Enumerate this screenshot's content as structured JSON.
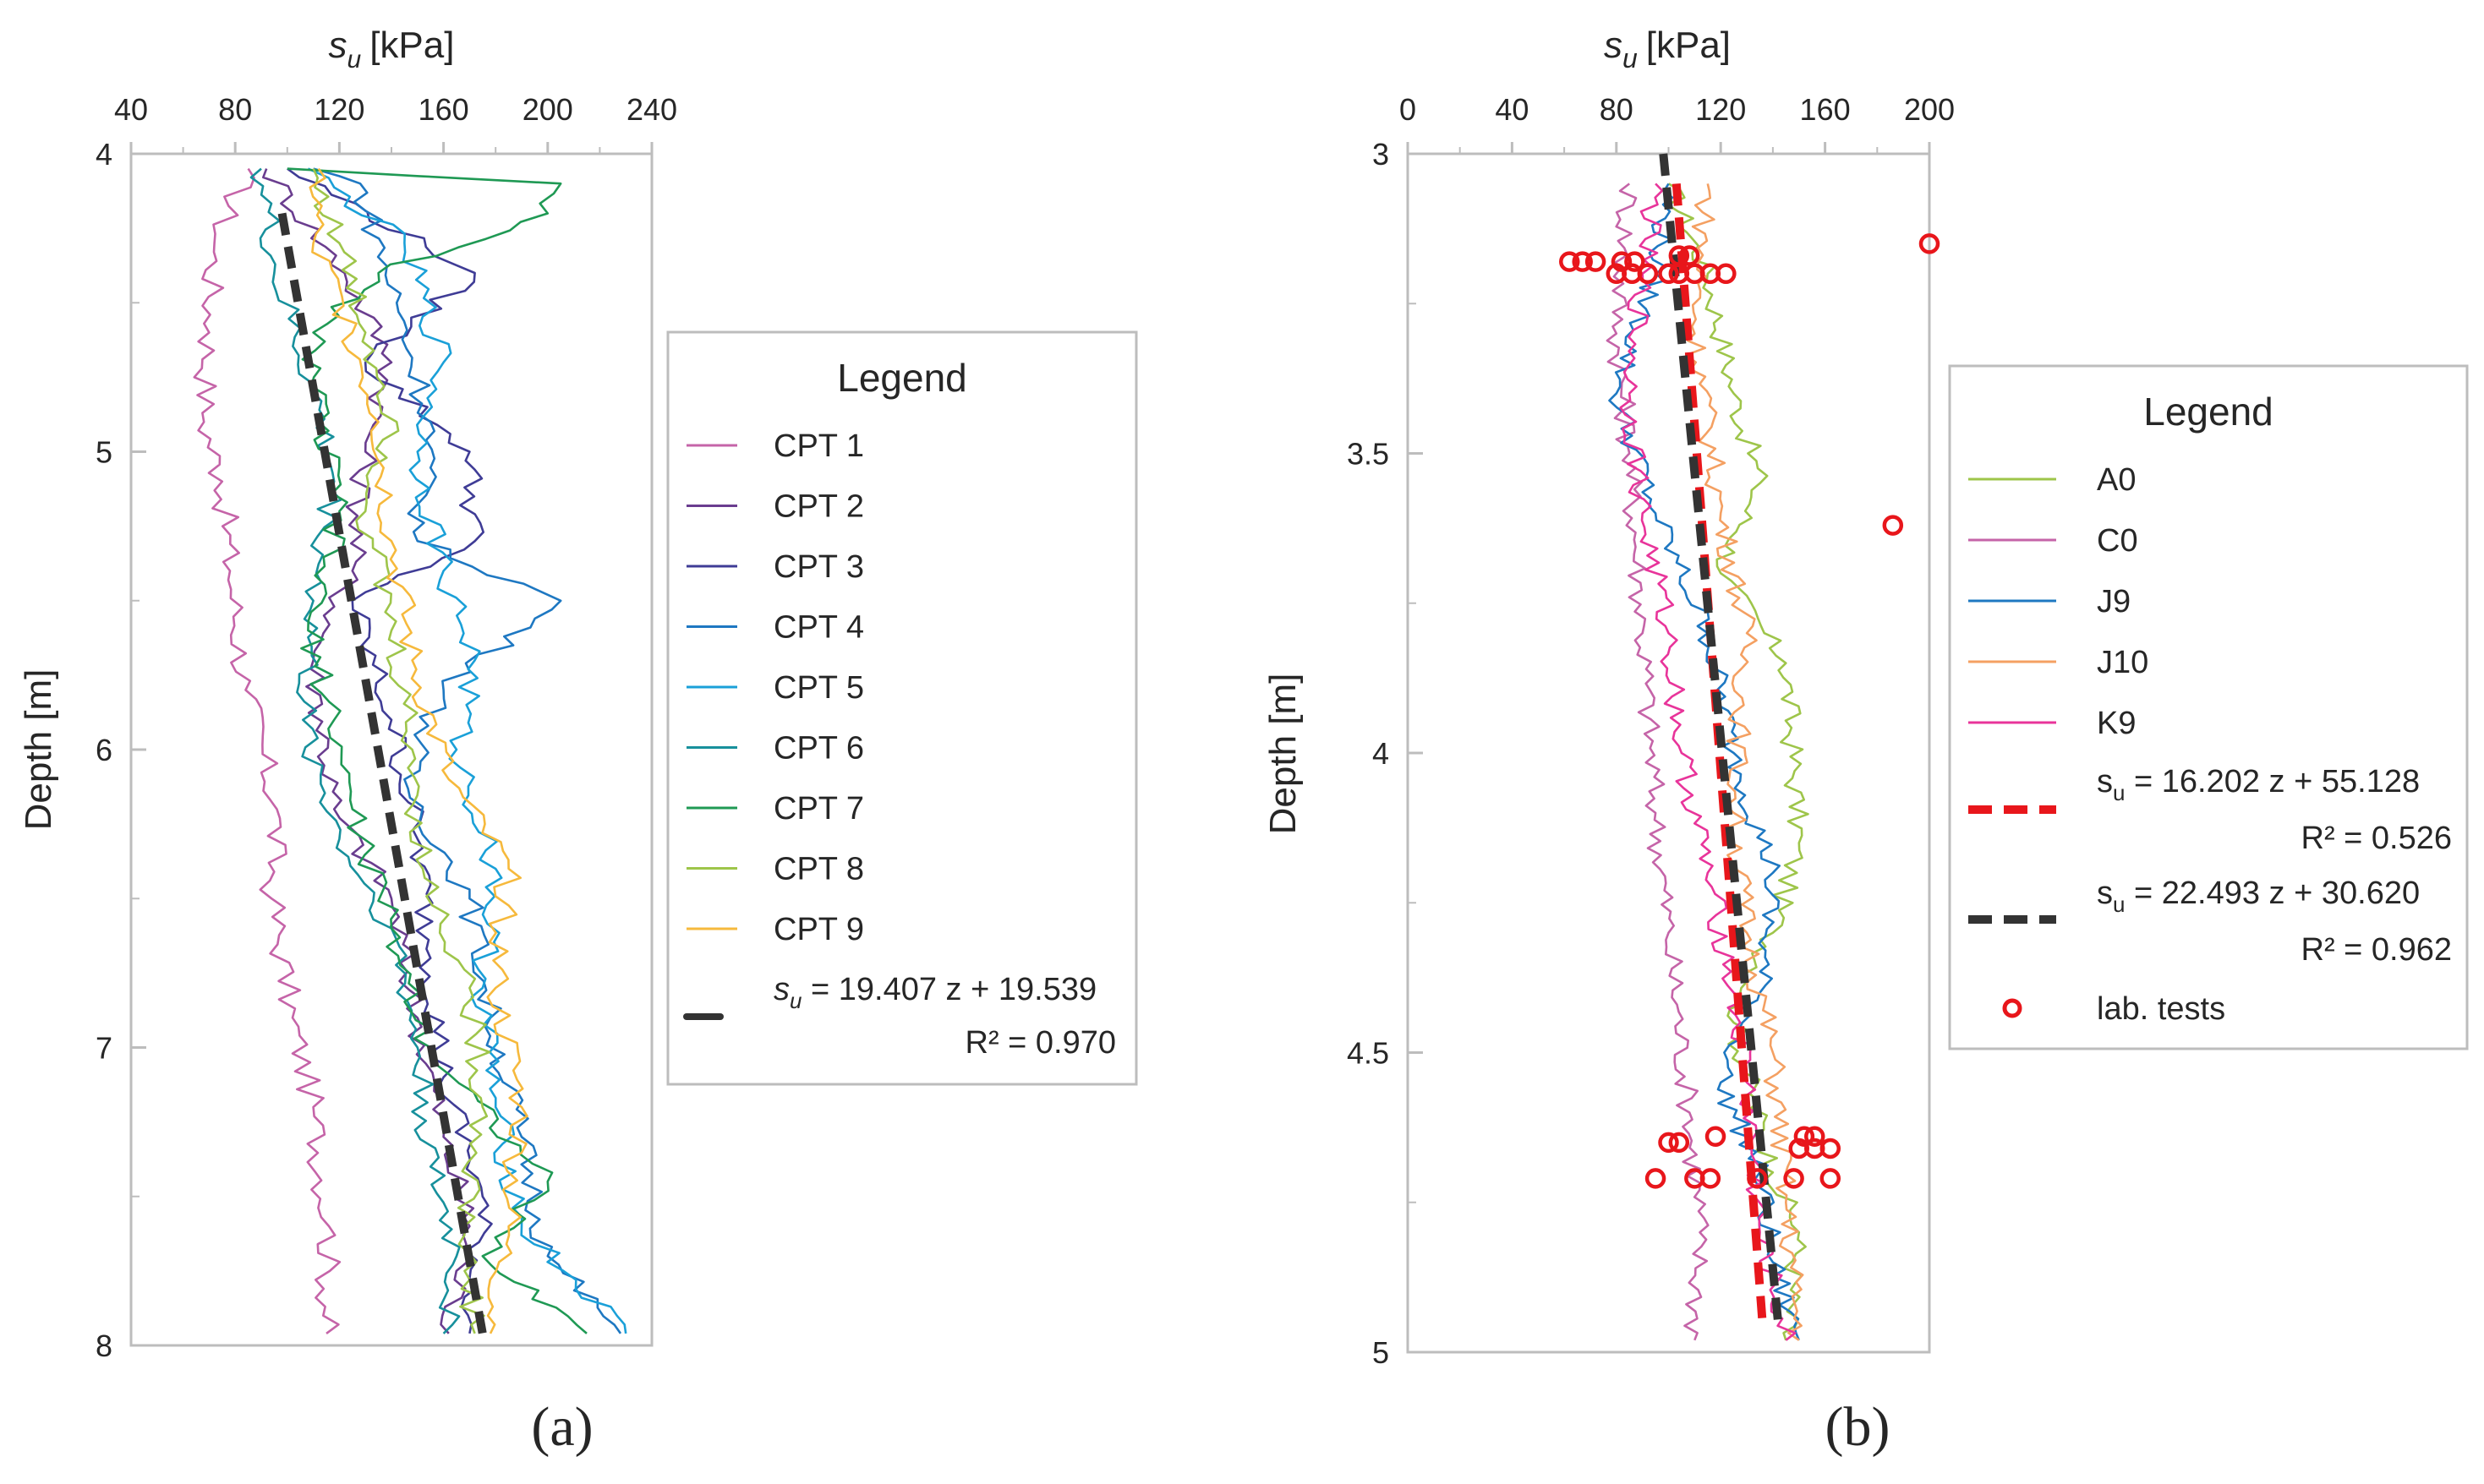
{
  "chart_data": [
    {
      "type": "line",
      "panel_label": "(a)",
      "xlabel": "s",
      "xlabel_sub": "u",
      "xlabel_unit": "[kPa]",
      "ylabel": "Depth [m]",
      "xlim": [
        40,
        240
      ],
      "ylim": [
        4,
        8
      ],
      "y_inverted": true,
      "x_axis_position": "top",
      "x_ticks": [
        "40",
        "80",
        "120",
        "160",
        "200",
        "240"
      ],
      "y_ticks": [
        "4",
        "5",
        "6",
        "7",
        "8"
      ],
      "grid": false,
      "legend": {
        "title": "Legend",
        "position": "right"
      },
      "series": [
        {
          "name": "CPT 1",
          "color": "#c564a8",
          "style": "solid",
          "points": [
            [
              85,
              4.05
            ],
            [
              72,
              4.3
            ],
            [
              70,
              4.6
            ],
            [
              68,
              4.9
            ],
            [
              75,
              5.1
            ],
            [
              78,
              5.4
            ],
            [
              84,
              5.8
            ],
            [
              96,
              6.2
            ],
            [
              94,
              6.5
            ],
            [
              102,
              6.9
            ],
            [
              110,
              7.2
            ],
            [
              116,
              7.6
            ],
            [
              115,
              7.96
            ]
          ]
        },
        {
          "name": "CPT 2",
          "color": "#6a3d8f",
          "style": "solid",
          "points": [
            [
              92,
              4.05
            ],
            [
              122,
              4.4
            ],
            [
              140,
              4.7
            ],
            [
              130,
              5.0
            ],
            [
              125,
              5.4
            ],
            [
              110,
              5.7
            ],
            [
              118,
              6.2
            ],
            [
              140,
              6.5
            ],
            [
              150,
              6.9
            ],
            [
              160,
              7.3
            ],
            [
              170,
              7.6
            ],
            [
              162,
              7.96
            ]
          ]
        },
        {
          "name": "CPT 3",
          "color": "#3f3c96",
          "style": "solid",
          "points": [
            [
              100,
              4.05
            ],
            [
              172,
              4.4
            ],
            [
              130,
              4.7
            ],
            [
              170,
              5.0
            ],
            [
              172,
              5.3
            ],
            [
              125,
              5.5
            ],
            [
              140,
              5.9
            ],
            [
              150,
              6.3
            ],
            [
              155,
              6.7
            ],
            [
              160,
              7.1
            ],
            [
              175,
              7.5
            ],
            [
              170,
              7.96
            ]
          ]
        },
        {
          "name": "CPT 4",
          "color": "#1e78c2",
          "style": "solid",
          "points": [
            [
              110,
              4.05
            ],
            [
              128,
              4.1
            ],
            [
              142,
              4.5
            ],
            [
              155,
              4.9
            ],
            [
              150,
              5.3
            ],
            [
              205,
              5.5
            ],
            [
              160,
              5.8
            ],
            [
              145,
              6.1
            ],
            [
              170,
              6.5
            ],
            [
              178,
              6.9
            ],
            [
              190,
              7.3
            ],
            [
              200,
              7.7
            ],
            [
              228,
              7.96
            ]
          ]
        },
        {
          "name": "CPT 5",
          "color": "#1aa0d8",
          "style": "solid",
          "points": [
            [
              108,
              4.05
            ],
            [
              145,
              4.3
            ],
            [
              160,
              4.7
            ],
            [
              150,
              5.0
            ],
            [
              160,
              5.4
            ],
            [
              172,
              5.7
            ],
            [
              165,
              6.0
            ],
            [
              180,
              6.4
            ],
            [
              175,
              6.8
            ],
            [
              180,
              7.2
            ],
            [
              190,
              7.6
            ],
            [
              230,
              7.96
            ]
          ]
        },
        {
          "name": "CPT 6",
          "color": "#17909c",
          "style": "solid",
          "points": [
            [
              90,
              4.05
            ],
            [
              95,
              4.4
            ],
            [
              110,
              4.8
            ],
            [
              118,
              5.1
            ],
            [
              110,
              5.5
            ],
            [
              106,
              5.9
            ],
            [
              120,
              6.3
            ],
            [
              140,
              6.6
            ],
            [
              150,
              7.0
            ],
            [
              155,
              7.4
            ],
            [
              165,
              7.7
            ],
            [
              160,
              7.96
            ]
          ]
        },
        {
          "name": "CPT 7",
          "color": "#1f9954",
          "style": "solid",
          "points": [
            [
              100,
              4.05
            ],
            [
              205,
              4.1
            ],
            [
              200,
              4.2
            ],
            [
              135,
              4.4
            ],
            [
              110,
              4.6
            ],
            [
              112,
              4.9
            ],
            [
              120,
              5.2
            ],
            [
              108,
              5.6
            ],
            [
              118,
              5.9
            ],
            [
              125,
              6.2
            ],
            [
              140,
              6.6
            ],
            [
              155,
              7.0
            ],
            [
              200,
              7.45
            ],
            [
              175,
              7.7
            ],
            [
              215,
              7.96
            ]
          ]
        },
        {
          "name": "CPT 8",
          "color": "#9ec54a",
          "style": "solid",
          "points": [
            [
              110,
              4.05
            ],
            [
              120,
              4.3
            ],
            [
              130,
              4.6
            ],
            [
              142,
              4.9
            ],
            [
              130,
              5.2
            ],
            [
              140,
              5.6
            ],
            [
              148,
              6.0
            ],
            [
              152,
              6.4
            ],
            [
              170,
              6.8
            ],
            [
              175,
              7.2
            ],
            [
              168,
              7.6
            ],
            [
              172,
              7.96
            ]
          ]
        },
        {
          "name": "CPT 9",
          "color": "#f6b93c",
          "style": "solid",
          "points": [
            [
              112,
              4.05
            ],
            [
              110,
              4.3
            ],
            [
              125,
              4.6
            ],
            [
              135,
              4.9
            ],
            [
              140,
              5.3
            ],
            [
              148,
              5.7
            ],
            [
              162,
              6.1
            ],
            [
              185,
              6.4
            ],
            [
              180,
              6.8
            ],
            [
              190,
              7.2
            ],
            [
              185,
              7.6
            ],
            [
              178,
              7.96
            ]
          ]
        },
        {
          "name": "fit",
          "color": "#333333",
          "style": "dashed",
          "fit": {
            "slope": 19.407,
            "intercept": 19.539
          },
          "points": [
            [
              98,
              4.2
            ],
            [
              175,
              7.96
            ]
          ]
        }
      ],
      "fit_label": {
        "var": "s",
        "sub": "u",
        "equation": " = 19.407 z + 19.539",
        "r2_label": "R² = 0.970"
      }
    },
    {
      "type": "line",
      "panel_label": "(b)",
      "xlabel": "s",
      "xlabel_sub": "u",
      "xlabel_unit": "[kPa]",
      "ylabel": "Depth [m]",
      "xlim": [
        0,
        200
      ],
      "ylim": [
        3,
        5
      ],
      "y_inverted": true,
      "x_axis_position": "top",
      "x_ticks": [
        "0",
        "40",
        "80",
        "120",
        "160",
        "200"
      ],
      "y_ticks": [
        "3",
        "3.5",
        "4",
        "4.5",
        "5"
      ],
      "grid": false,
      "legend": {
        "title": "Legend",
        "position": "right"
      },
      "series": [
        {
          "name": "A0",
          "color": "#9ec54a",
          "style": "solid",
          "points": [
            [
              100,
              3.05
            ],
            [
              115,
              3.2
            ],
            [
              125,
              3.4
            ],
            [
              135,
              3.55
            ],
            [
              120,
              3.7
            ],
            [
              145,
              3.85
            ],
            [
              150,
              4.15
            ],
            [
              140,
              4.3
            ],
            [
              125,
              4.45
            ],
            [
              140,
              4.7
            ],
            [
              150,
              4.8
            ],
            [
              145,
              4.98
            ]
          ]
        },
        {
          "name": "C0",
          "color": "#c564a8",
          "style": "solid",
          "points": [
            [
              85,
              3.05
            ],
            [
              80,
              3.3
            ],
            [
              85,
              3.5
            ],
            [
              90,
              3.8
            ],
            [
              95,
              4.1
            ],
            [
              100,
              4.3
            ],
            [
              108,
              4.6
            ],
            [
              112,
              4.8
            ],
            [
              110,
              4.98
            ]
          ]
        },
        {
          "name": "J9",
          "color": "#1e78c2",
          "style": "solid",
          "points": [
            [
              100,
              3.05
            ],
            [
              95,
              3.2
            ],
            [
              80,
              3.4
            ],
            [
              95,
              3.6
            ],
            [
              115,
              3.8
            ],
            [
              125,
              4.0
            ],
            [
              140,
              4.2
            ],
            [
              135,
              4.4
            ],
            [
              120,
              4.55
            ],
            [
              135,
              4.7
            ],
            [
              140,
              4.85
            ],
            [
              150,
              4.98
            ]
          ]
        },
        {
          "name": "J10",
          "color": "#f4a062",
          "style": "solid",
          "points": [
            [
              115,
              3.05
            ],
            [
              110,
              3.3
            ],
            [
              120,
              3.6
            ],
            [
              130,
              3.8
            ],
            [
              125,
              4.1
            ],
            [
              130,
              4.3
            ],
            [
              140,
              4.5
            ],
            [
              145,
              4.75
            ],
            [
              150,
              4.98
            ]
          ]
        },
        {
          "name": "K9",
          "color": "#e8349a",
          "style": "solid",
          "points": [
            [
              95,
              3.05
            ],
            [
              90,
              3.2
            ],
            [
              85,
              3.4
            ],
            [
              90,
              3.6
            ],
            [
              100,
              3.8
            ],
            [
              105,
              4.0
            ],
            [
              115,
              4.2
            ],
            [
              125,
              4.4
            ],
            [
              130,
              4.55
            ],
            [
              135,
              4.8
            ],
            [
              145,
              4.98
            ]
          ]
        },
        {
          "name": "fit1",
          "color": "#e8161b",
          "style": "dashed",
          "fit": {
            "slope": 16.202,
            "intercept": 55.128
          },
          "points": [
            [
              103,
              3.05
            ],
            [
              136,
              4.95
            ]
          ]
        },
        {
          "name": "fit2",
          "color": "#333333",
          "style": "dashed",
          "fit": {
            "slope": 22.493,
            "intercept": 30.62
          },
          "points": [
            [
              98,
              3.0
            ],
            [
              142,
              4.95
            ]
          ]
        },
        {
          "name": "lab. tests",
          "color": "#e8161b",
          "style": "marker",
          "points": [
            [
              200,
              3.15
            ],
            [
              62,
              3.18
            ],
            [
              67,
              3.18
            ],
            [
              72,
              3.18
            ],
            [
              82,
              3.18
            ],
            [
              87,
              3.18
            ],
            [
              80,
              3.2
            ],
            [
              86,
              3.2
            ],
            [
              92,
              3.2
            ],
            [
              100,
              3.2
            ],
            [
              104,
              3.2
            ],
            [
              110,
              3.2
            ],
            [
              116,
              3.2
            ],
            [
              122,
              3.2
            ],
            [
              104,
              3.17
            ],
            [
              108,
              3.17
            ],
            [
              186,
              3.62
            ],
            [
              100,
              4.65
            ],
            [
              104,
              4.65
            ],
            [
              118,
              4.64
            ],
            [
              152,
              4.64
            ],
            [
              156,
              4.64
            ],
            [
              150,
              4.66
            ],
            [
              156,
              4.66
            ],
            [
              162,
              4.66
            ],
            [
              95,
              4.71
            ],
            [
              110,
              4.71
            ],
            [
              116,
              4.71
            ],
            [
              134,
              4.71
            ],
            [
              148,
              4.71
            ],
            [
              162,
              4.71
            ]
          ]
        }
      ],
      "fit_labels": [
        {
          "var": "s",
          "sub": "u",
          "equation": " = 16.202 z + 55.128",
          "r2_label": "R² = 0.526"
        },
        {
          "var": "s",
          "sub": "u",
          "equation": " = 22.493 z + 30.620",
          "r2_label": "R² = 0.962"
        }
      ]
    }
  ]
}
